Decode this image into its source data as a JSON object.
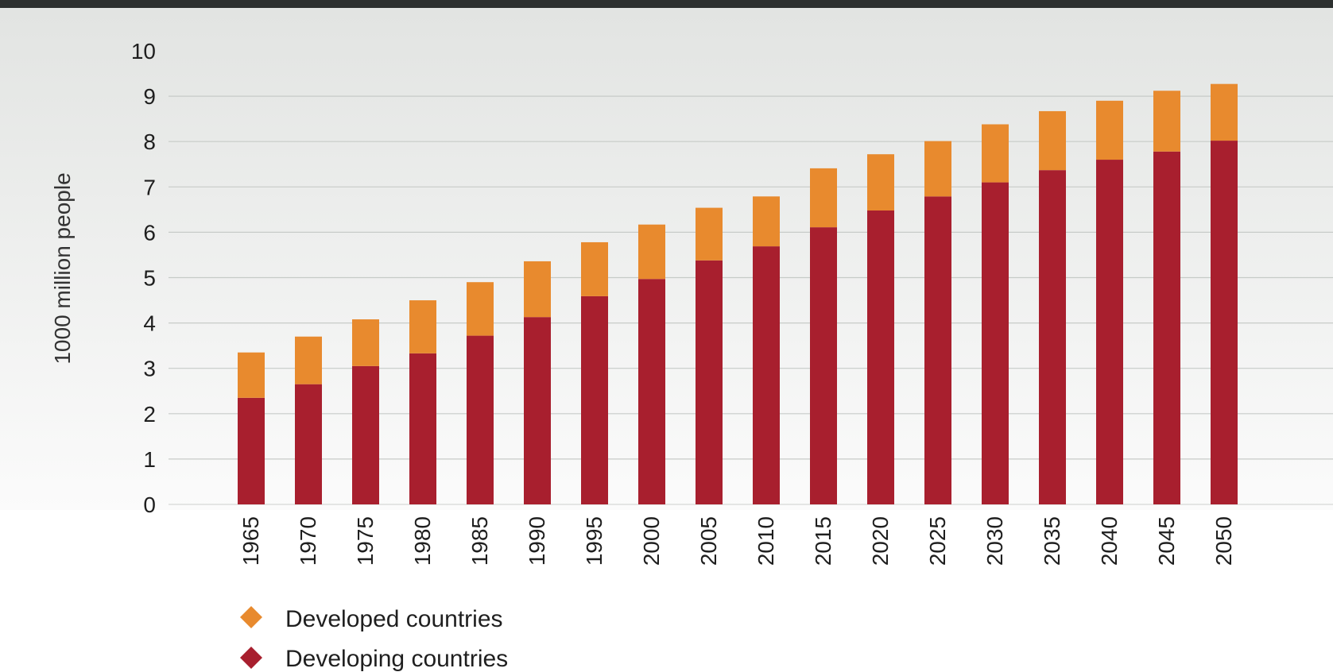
{
  "chart_data": {
    "type": "bar",
    "stacked": true,
    "ylabel": "1000 million people",
    "xlabel": "",
    "ylim": [
      0,
      10
    ],
    "y_ticks": [
      0,
      1,
      2,
      3,
      4,
      5,
      6,
      7,
      8,
      9,
      10
    ],
    "grid": true,
    "legend_position": "bottom-left",
    "categories": [
      "1965",
      "1970",
      "1975",
      "1980",
      "1985",
      "1990",
      "1995",
      "2000",
      "2005",
      "2010",
      "2015",
      "2020",
      "2025",
      "2030",
      "2035",
      "2040",
      "2045",
      "2050"
    ],
    "series": [
      {
        "name": "Developing countries",
        "color": "#a81f2e",
        "values": [
          2.35,
          2.65,
          3.05,
          3.33,
          3.72,
          4.13,
          4.59,
          4.97,
          5.38,
          5.69,
          6.11,
          6.48,
          6.79,
          7.1,
          7.37,
          7.6,
          7.78,
          8.02
        ]
      },
      {
        "name": "Developed countries",
        "color": "#e88a2e",
        "values": [
          1.0,
          1.05,
          1.03,
          1.17,
          1.18,
          1.23,
          1.19,
          1.2,
          1.16,
          1.1,
          1.3,
          1.24,
          1.22,
          1.28,
          1.3,
          1.3,
          1.34,
          1.25
        ]
      }
    ]
  },
  "legend": [
    {
      "label": "Developed countries",
      "color": "#e88a2e",
      "icon": "diamond-icon"
    },
    {
      "label": "Developing countries",
      "color": "#a81f2e",
      "icon": "diamond-icon"
    }
  ]
}
